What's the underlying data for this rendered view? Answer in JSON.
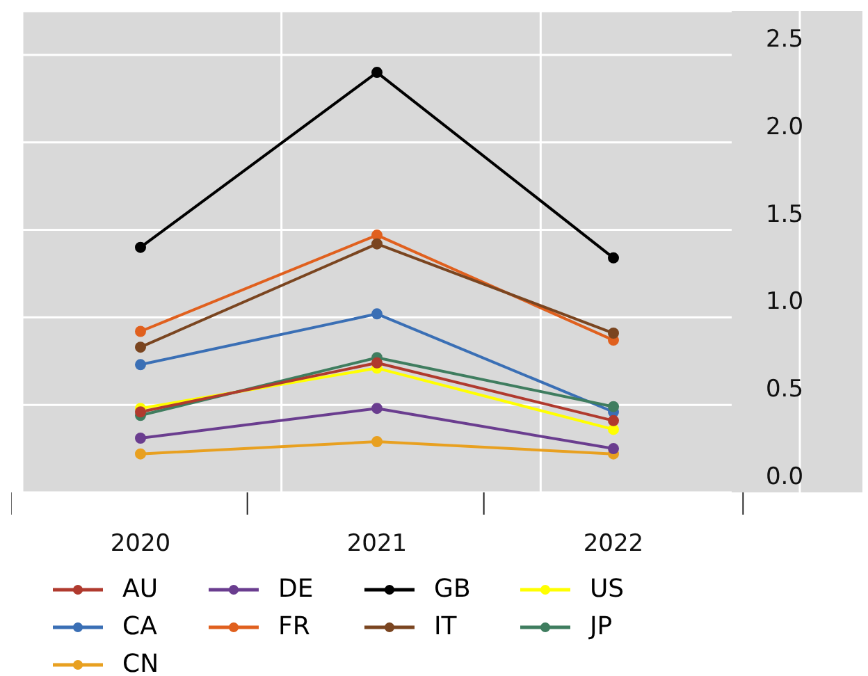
{
  "chart_data": {
    "type": "line",
    "categories": [
      "2020",
      "2021",
      "2022"
    ],
    "series": [
      {
        "name": "AU",
        "color": "#b03a2e",
        "values": [
          0.46,
          0.74,
          0.41
        ]
      },
      {
        "name": "CA",
        "color": "#3a6fb5",
        "values": [
          0.73,
          1.02,
          0.46
        ]
      },
      {
        "name": "CN",
        "color": "#e8a020",
        "values": [
          0.22,
          0.29,
          0.22
        ]
      },
      {
        "name": "DE",
        "color": "#6a3d8f",
        "values": [
          0.31,
          0.48,
          0.25
        ]
      },
      {
        "name": "FR",
        "color": "#e0601e",
        "values": [
          0.92,
          1.47,
          0.87
        ]
      },
      {
        "name": "GB",
        "color": "#000000",
        "values": [
          1.4,
          2.4,
          1.34
        ]
      },
      {
        "name": "IT",
        "color": "#7a4520",
        "values": [
          0.83,
          1.42,
          0.91
        ]
      },
      {
        "name": "US",
        "color": "#ffff00",
        "values": [
          0.48,
          0.71,
          0.36
        ]
      },
      {
        "name": "JP",
        "color": "#3f7d5f",
        "values": [
          0.44,
          0.77,
          0.49
        ]
      }
    ],
    "ylim": [
      0,
      2.75
    ],
    "yticks": [
      {
        "value": 0,
        "label": "0.0"
      },
      {
        "value": 0.5,
        "label": "0.5"
      },
      {
        "value": 1,
        "label": "1.0"
      },
      {
        "value": 1.5,
        "label": "1.5"
      },
      {
        "value": 2,
        "label": "2.0"
      },
      2.5
    ],
    "grid": true,
    "legend": "bottom",
    "marker": "circle",
    "line_style": "solid"
  }
}
